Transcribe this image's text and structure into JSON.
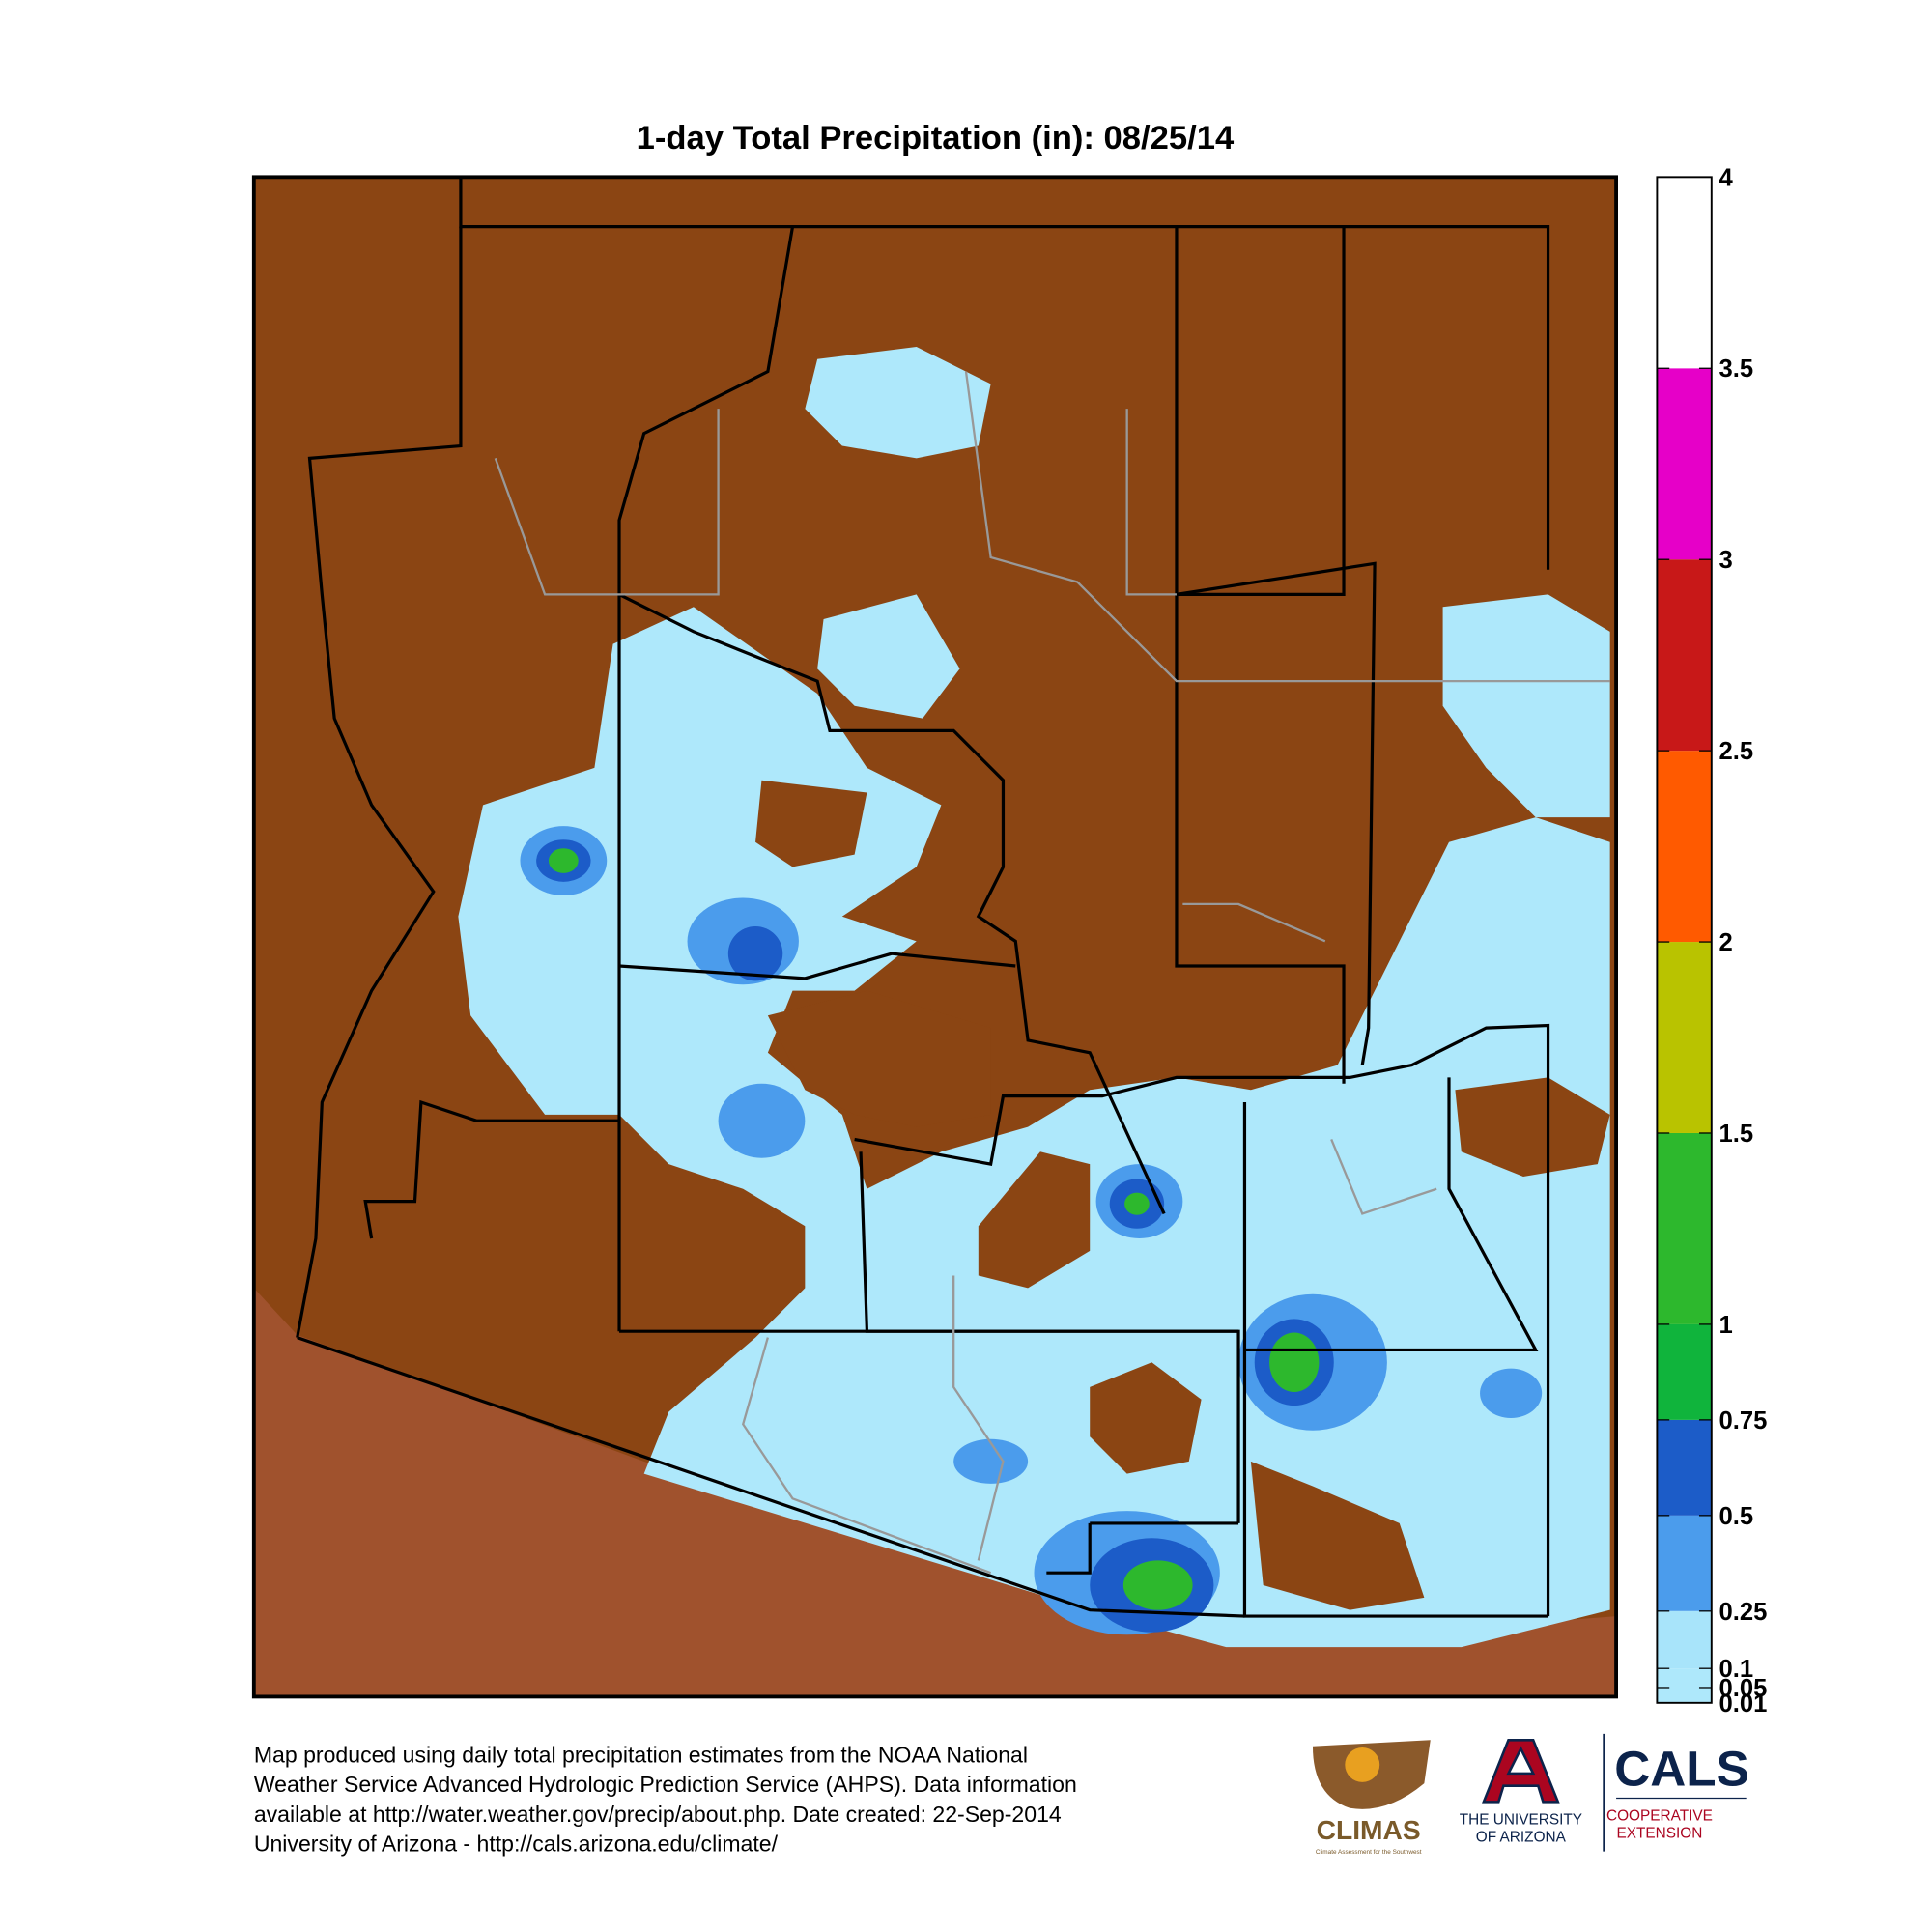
{
  "header": {
    "title": "1-day Total Precipitation (in): 08/25/14"
  },
  "colorbar": {
    "ticks": [
      0.01,
      0.05,
      0.1,
      0.25,
      0.5,
      0.75,
      1,
      1.5,
      2,
      2.5,
      3,
      3.5,
      4
    ],
    "colors": [
      "#aee8fb",
      "#aee8fb",
      "#a8e4fa",
      "#4b9cec",
      "#1c5cc8",
      "#10b43c",
      "#2db82d",
      "#b9c300",
      "#ff5a00",
      "#c81818",
      "#e600c8",
      "#ffffff"
    ]
  },
  "footer": {
    "lines": [
      "Map produced using daily total precipitation estimates from the NOAA National",
      "Weather Service Advanced Hydrologic Prediction Service (AHPS). Data information",
      "available at http://water.weather.gov/precip/about.php. Date created: 22-Sep-2014",
      "University of Arizona - http://cals.arizona.edu/climate/"
    ]
  },
  "logos": {
    "climas": "CLIMAS",
    "climas_sub": "Climate Assessment for the Southwest",
    "ua_line1": "THE UNIVERSITY",
    "ua_line2": "OF ARIZONA",
    "cals": "CALS",
    "cals_line1": "COOPERATIVE",
    "cals_line2": "EXTENSION"
  }
}
